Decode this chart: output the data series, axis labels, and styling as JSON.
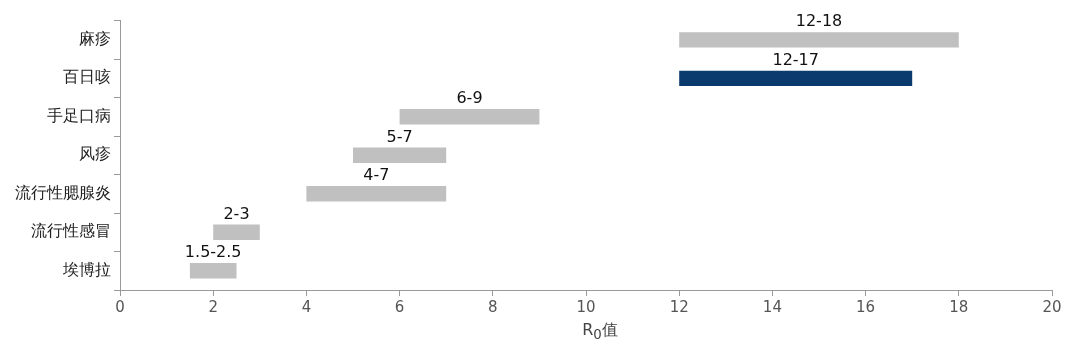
{
  "chart_data": {
    "type": "bar",
    "orientation": "horizontal",
    "xlabel": "R$_{0}$值",
    "categories": [
      "麻疹",
      "百日咳",
      "手足口病",
      "风疹",
      "流行性腮腺炎",
      "流行性感冒",
      "埃博拉"
    ],
    "base": [
      12,
      12,
      6,
      5,
      4,
      2,
      1.5
    ],
    "values": [
      6,
      5,
      3,
      2,
      3,
      1,
      1
    ],
    "colors": [
      "#c0c0c0",
      "#0b3a6e",
      "#c0c0c0",
      "#c0c0c0",
      "#c0c0c0",
      "#c0c0c0",
      "#c0c0c0"
    ],
    "value_labels": [
      "12-18",
      "12-17",
      "6-9",
      "5-7",
      "4-7",
      "2-3",
      "1.5-2.5"
    ],
    "xlim": [
      0,
      20
    ],
    "xticks": [
      0,
      2,
      4,
      6,
      8,
      10,
      12,
      14,
      16,
      18,
      20
    ],
    "grid": false,
    "legend": false
  }
}
